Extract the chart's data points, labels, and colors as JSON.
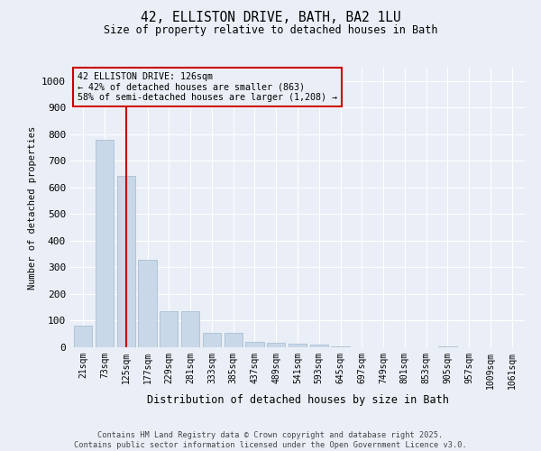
{
  "title1": "42, ELLISTON DRIVE, BATH, BA2 1LU",
  "title2": "Size of property relative to detached houses in Bath",
  "xlabel": "Distribution of detached houses by size in Bath",
  "ylabel": "Number of detached properties",
  "bar_color": "#c8d8e8",
  "bar_edge_color": "#a0b8cc",
  "categories": [
    "21sqm",
    "73sqm",
    "125sqm",
    "177sqm",
    "229sqm",
    "281sqm",
    "333sqm",
    "385sqm",
    "437sqm",
    "489sqm",
    "541sqm",
    "593sqm",
    "645sqm",
    "697sqm",
    "749sqm",
    "801sqm",
    "853sqm",
    "905sqm",
    "957sqm",
    "1009sqm",
    "1061sqm"
  ],
  "values": [
    82,
    780,
    645,
    330,
    135,
    135,
    55,
    55,
    22,
    18,
    13,
    10,
    5,
    0,
    0,
    0,
    0,
    5,
    0,
    0,
    0
  ],
  "ylim": [
    0,
    1050
  ],
  "yticks": [
    0,
    100,
    200,
    300,
    400,
    500,
    600,
    700,
    800,
    900,
    1000
  ],
  "vline_color": "#cc0000",
  "annotation_title": "42 ELLISTON DRIVE: 126sqm",
  "annotation_line1": "← 42% of detached houses are smaller (863)",
  "annotation_line2": "58% of semi-detached houses are larger (1,208) →",
  "annotation_box_color": "#cc0000",
  "footer1": "Contains HM Land Registry data © Crown copyright and database right 2025.",
  "footer2": "Contains public sector information licensed under the Open Government Licence v3.0.",
  "background_color": "#eaeff7",
  "grid_color": "#ffffff"
}
